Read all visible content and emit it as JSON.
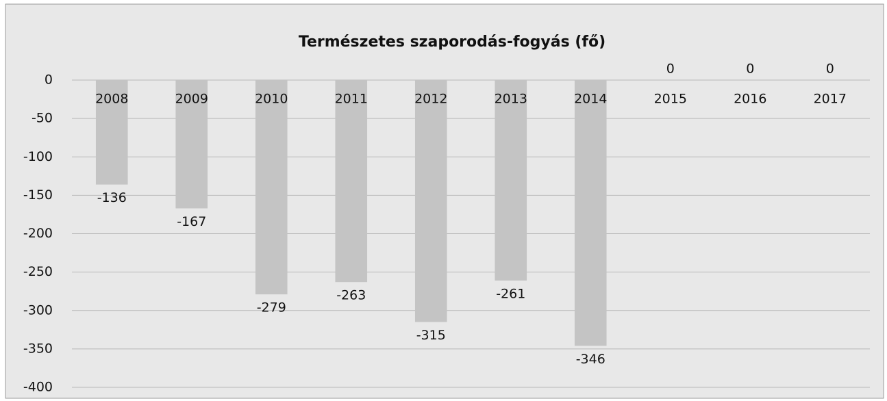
{
  "chart_data": {
    "type": "bar",
    "title": "Természetes szaporodás-fogyás (fő)",
    "categories": [
      "2008",
      "2009",
      "2010",
      "2011",
      "2012",
      "2013",
      "2014",
      "2015",
      "2016",
      "2017"
    ],
    "values": [
      -136,
      -167,
      -279,
      -263,
      -315,
      -261,
      -346,
      0,
      0,
      0
    ],
    "color": "#c4c4c4",
    "ylim": [
      -400,
      0
    ],
    "yticks": [
      0,
      -50,
      -100,
      -150,
      -200,
      -250,
      -300,
      -350,
      -400
    ],
    "grid": true
  }
}
